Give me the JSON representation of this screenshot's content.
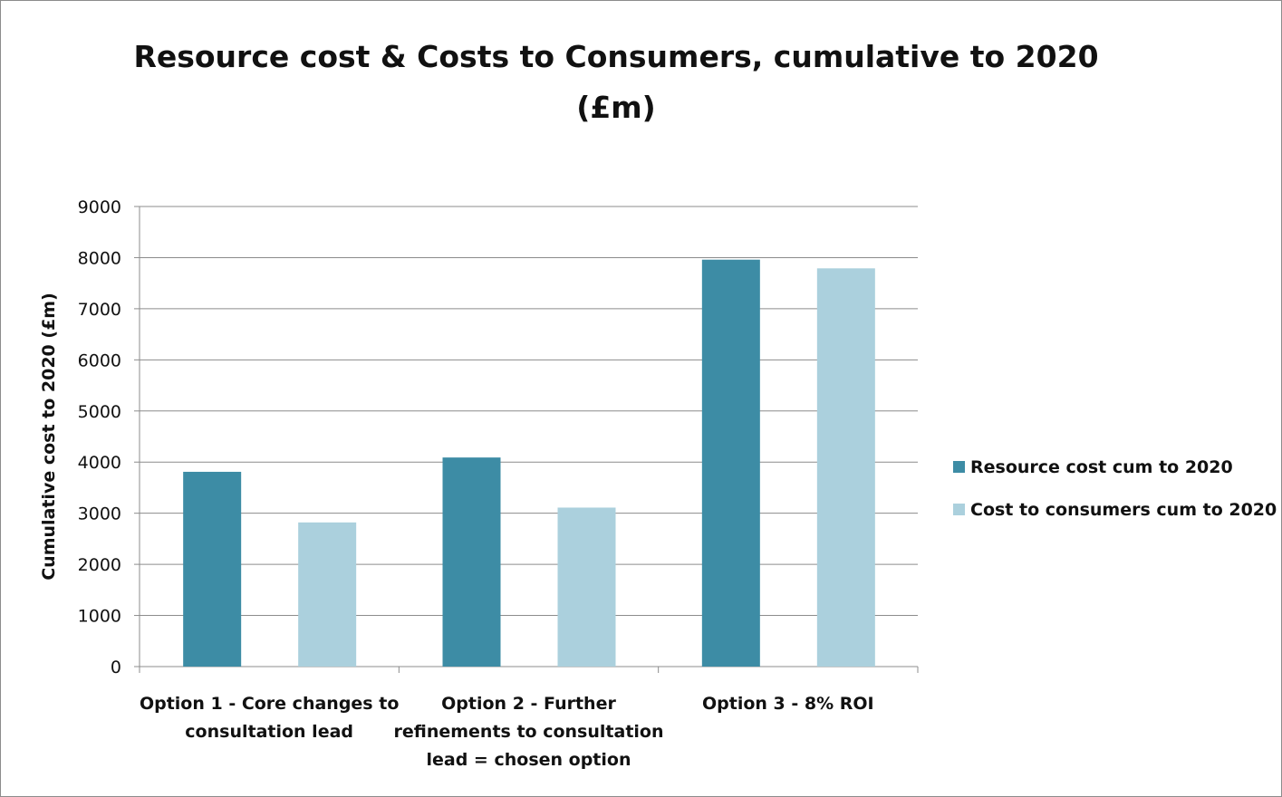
{
  "chart_data": {
    "type": "bar",
    "title_lines": [
      "Resource cost & Costs to Consumers, cumulative to 2020",
      "(£m)"
    ],
    "ylabel": "Cumulative cost to 2020 (£m)",
    "xlabel": "",
    "ylim": [
      0,
      9000
    ],
    "yticks": [
      0,
      1000,
      2000,
      3000,
      4000,
      5000,
      6000,
      7000,
      8000,
      9000
    ],
    "grid": true,
    "legend_position": "right",
    "categories": [
      [
        "Option 1 - Core changes to",
        "consultation lead"
      ],
      [
        "Option 2 - Further",
        "refinements to consultation",
        "lead = chosen option"
      ],
      [
        "Option 3 - 8% ROI"
      ]
    ],
    "series": [
      {
        "name": "Resource cost cum to 2020",
        "color": "#3d8ca5",
        "values": [
          3810,
          4090,
          7960
        ]
      },
      {
        "name": "Cost to consumers cum to 2020",
        "color": "#abd0dd",
        "values": [
          2820,
          3110,
          7790
        ]
      }
    ]
  }
}
